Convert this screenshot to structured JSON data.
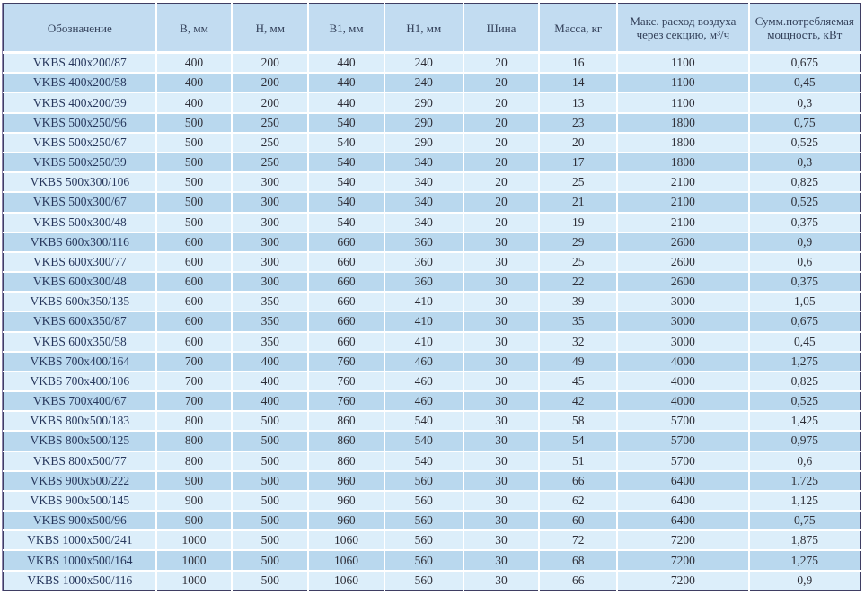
{
  "document": {
    "type": "specification-table",
    "product_series": "VKBS"
  },
  "accent_colors": {
    "outer_border": "#3f3e63",
    "header_bg": "#c2dcf1",
    "row_light": "#dceefa",
    "row_dark": "#b9d8ee",
    "separator": "#ffffff",
    "header_text": "#323f58",
    "body_text": "#2d2d36"
  },
  "chart_data": {
    "type": "table",
    "columns": [
      "Обозначение",
      "B, мм",
      "H, мм",
      "B1, мм",
      "H1, мм",
      "Шина",
      "Масса, кг",
      "Макс. расход воздуха через секцию, м³/ч",
      "Сумм.потребляемая мощность, кВт"
    ],
    "rows": [
      [
        "VKBS 400x200/87",
        "400",
        "200",
        "440",
        "240",
        "20",
        "16",
        "1100",
        "0,675"
      ],
      [
        "VKBS 400x200/58",
        "400",
        "200",
        "440",
        "240",
        "20",
        "14",
        "1100",
        "0,45"
      ],
      [
        "VKBS 400x200/39",
        "400",
        "200",
        "440",
        "290",
        "20",
        "13",
        "1100",
        "0,3"
      ],
      [
        "VKBS 500x250/96",
        "500",
        "250",
        "540",
        "290",
        "20",
        "23",
        "1800",
        "0,75"
      ],
      [
        "VKBS 500x250/67",
        "500",
        "250",
        "540",
        "290",
        "20",
        "20",
        "1800",
        "0,525"
      ],
      [
        "VKBS 500x250/39",
        "500",
        "250",
        "540",
        "340",
        "20",
        "17",
        "1800",
        "0,3"
      ],
      [
        "VKBS 500x300/106",
        "500",
        "300",
        "540",
        "340",
        "20",
        "25",
        "2100",
        "0,825"
      ],
      [
        "VKBS 500x300/67",
        "500",
        "300",
        "540",
        "340",
        "20",
        "21",
        "2100",
        "0,525"
      ],
      [
        "VKBS 500x300/48",
        "500",
        "300",
        "540",
        "340",
        "20",
        "19",
        "2100",
        "0,375"
      ],
      [
        "VKBS 600x300/116",
        "600",
        "300",
        "660",
        "360",
        "30",
        "29",
        "2600",
        "0,9"
      ],
      [
        "VKBS 600x300/77",
        "600",
        "300",
        "660",
        "360",
        "30",
        "25",
        "2600",
        "0,6"
      ],
      [
        "VKBS 600x300/48",
        "600",
        "300",
        "660",
        "360",
        "30",
        "22",
        "2600",
        "0,375"
      ],
      [
        "VKBS 600x350/135",
        "600",
        "350",
        "660",
        "410",
        "30",
        "39",
        "3000",
        "1,05"
      ],
      [
        "VKBS 600x350/87",
        "600",
        "350",
        "660",
        "410",
        "30",
        "35",
        "3000",
        "0,675"
      ],
      [
        "VKBS 600x350/58",
        "600",
        "350",
        "660",
        "410",
        "30",
        "32",
        "3000",
        "0,45"
      ],
      [
        "VKBS 700x400/164",
        "700",
        "400",
        "760",
        "460",
        "30",
        "49",
        "4000",
        "1,275"
      ],
      [
        "VKBS 700x400/106",
        "700",
        "400",
        "760",
        "460",
        "30",
        "45",
        "4000",
        "0,825"
      ],
      [
        "VKBS 700x400/67",
        "700",
        "400",
        "760",
        "460",
        "30",
        "42",
        "4000",
        "0,525"
      ],
      [
        "VKBS 800x500/183",
        "800",
        "500",
        "860",
        "540",
        "30",
        "58",
        "5700",
        "1,425"
      ],
      [
        "VKBS 800x500/125",
        "800",
        "500",
        "860",
        "540",
        "30",
        "54",
        "5700",
        "0,975"
      ],
      [
        "VKBS 800x500/77",
        "800",
        "500",
        "860",
        "540",
        "30",
        "51",
        "5700",
        "0,6"
      ],
      [
        "VKBS 900x500/222",
        "900",
        "500",
        "960",
        "560",
        "30",
        "66",
        "6400",
        "1,725"
      ],
      [
        "VKBS 900x500/145",
        "900",
        "500",
        "960",
        "560",
        "30",
        "62",
        "6400",
        "1,125"
      ],
      [
        "VKBS 900x500/96",
        "900",
        "500",
        "960",
        "560",
        "30",
        "60",
        "6400",
        "0,75"
      ],
      [
        "VKBS 1000x500/241",
        "1000",
        "500",
        "1060",
        "560",
        "30",
        "72",
        "7200",
        "1,875"
      ],
      [
        "VKBS 1000x500/164",
        "1000",
        "500",
        "1060",
        "560",
        "30",
        "68",
        "7200",
        "1,275"
      ],
      [
        "VKBS 1000x500/116",
        "1000",
        "500",
        "1060",
        "560",
        "30",
        "66",
        "7200",
        "0,9"
      ]
    ]
  }
}
